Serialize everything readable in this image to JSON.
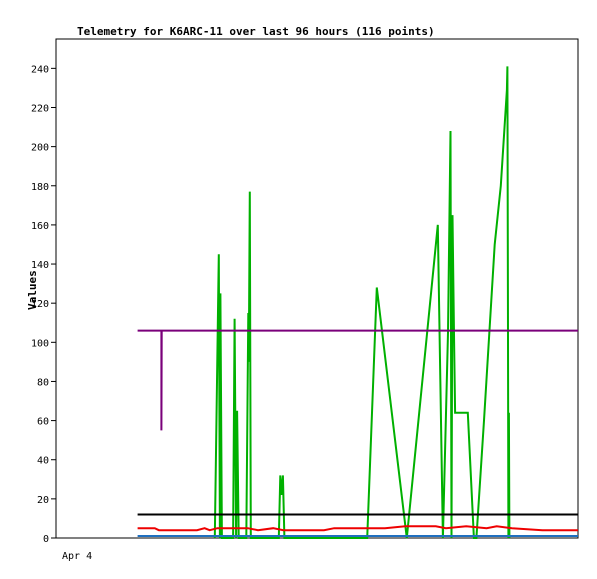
{
  "chart_data": {
    "type": "line",
    "title": "Telemetry for K6ARC-11 over last 96 hours (116 points)",
    "ylabel": "Values",
    "ylim": [
      0,
      255
    ],
    "yticks": [
      0,
      20,
      40,
      60,
      80,
      100,
      120,
      140,
      160,
      180,
      200,
      220,
      240
    ],
    "x_tick_labels": [
      {
        "t": 0,
        "label": "Apr 4"
      }
    ],
    "x_range": [
      0,
      100
    ],
    "colors": {
      "green": "#00b000",
      "purple": "#7a007a",
      "black": "#000000",
      "red": "#ee0000",
      "blue": "#1f6fbf"
    },
    "series": [
      {
        "color": "green",
        "points": [
          [
            28.5,
            0
          ],
          [
            29.3,
            145
          ],
          [
            29.5,
            0
          ],
          [
            29.6,
            125
          ],
          [
            29.9,
            0
          ],
          [
            32.1,
            0
          ],
          [
            32.4,
            112
          ],
          [
            32.7,
            0
          ],
          [
            32.9,
            65
          ],
          [
            33.2,
            0
          ],
          [
            34.7,
            0
          ],
          [
            35.1,
            115
          ],
          [
            35.2,
            90
          ],
          [
            35.4,
            177
          ],
          [
            35.6,
            0
          ],
          [
            41.1,
            0
          ],
          [
            41.4,
            32
          ],
          [
            41.6,
            22
          ],
          [
            41.9,
            32
          ],
          [
            42.2,
            0
          ],
          [
            58.5,
            0
          ],
          [
            60.4,
            128
          ],
          [
            66.3,
            0
          ],
          [
            72.4,
            160
          ],
          [
            73.4,
            0
          ],
          [
            74.4,
            105
          ],
          [
            74.9,
            208
          ],
          [
            75.1,
            0
          ],
          [
            75.3,
            165
          ],
          [
            75.6,
            104
          ],
          [
            75.8,
            64
          ],
          [
            78.3,
            64
          ],
          [
            79.5,
            0
          ],
          [
            80.0,
            0
          ],
          [
            81.5,
            60
          ],
          [
            83.6,
            150
          ],
          [
            84.8,
            180
          ],
          [
            86.0,
            229
          ],
          [
            86.1,
            241
          ],
          [
            86.2,
            128
          ],
          [
            86.3,
            0
          ],
          [
            86.4,
            64
          ],
          [
            86.5,
            0
          ]
        ]
      },
      {
        "color": "purple",
        "points": [
          [
            13.3,
            106
          ],
          [
            18.0,
            106
          ],
          [
            18.0,
            55
          ],
          [
            18.05,
            106
          ],
          [
            100,
            106
          ]
        ]
      },
      {
        "color": "black",
        "points": [
          [
            13.3,
            12
          ],
          [
            100,
            12
          ]
        ]
      },
      {
        "color": "red",
        "points": [
          [
            13.3,
            5
          ],
          [
            16.7,
            5
          ],
          [
            17.5,
            4
          ],
          [
            25,
            4
          ],
          [
            26.5,
            5
          ],
          [
            27.5,
            4
          ],
          [
            29,
            5
          ],
          [
            35,
            5
          ],
          [
            37,
            4
          ],
          [
            40,
            5
          ],
          [
            42,
            4
          ],
          [
            50,
            4
          ],
          [
            52,
            5
          ],
          [
            62,
            5
          ],
          [
            66,
            6
          ],
          [
            72,
            6
          ],
          [
            74,
            5
          ],
          [
            78,
            6
          ],
          [
            82,
            5
          ],
          [
            84,
            6
          ],
          [
            87,
            5
          ],
          [
            93,
            4
          ],
          [
            100,
            4
          ]
        ]
      },
      {
        "color": "blue",
        "points": [
          [
            13.3,
            1
          ],
          [
            100,
            1
          ]
        ]
      }
    ]
  }
}
